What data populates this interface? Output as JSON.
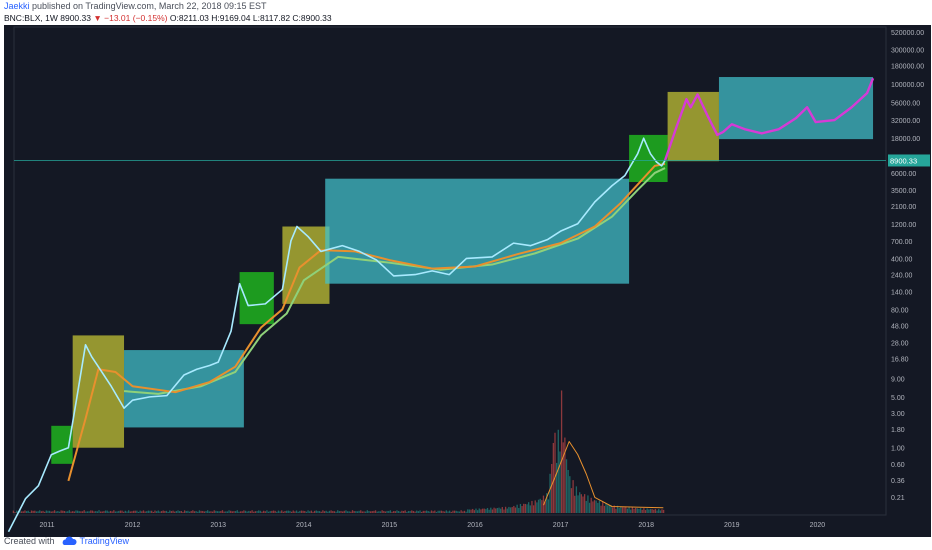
{
  "header": {
    "author": "Jaekki",
    "published": " published on TradingView.com, March 22, 2018 09:15 EST",
    "symbol": "BNC:BLX, 1W",
    "last": "8900.33",
    "change_arrow": "▼",
    "change": "−13.01 (−0.15%)",
    "ohlc": "O:8211.03  H:9169.04  L:8117.82  C:8900.33"
  },
  "footer": {
    "created_with": "Created with",
    "brand": "TradingView"
  },
  "colors": {
    "background": "#141824",
    "axis_text": "#b2b5be",
    "price_line": "#26a69a",
    "green_box": "#1fb31f",
    "yellow_box": "#c8c834",
    "cyan_box": "#43c3cd",
    "projection": "#d63ad6",
    "ma_orange": "#e8902e",
    "ma_green": "#8fd17a"
  },
  "chart_data": {
    "type": "line",
    "y_scale": "log",
    "x_ticks": [
      "2011",
      "2012",
      "2013",
      "2014",
      "2015",
      "2016",
      "2017",
      "2018",
      "2019",
      "2020"
    ],
    "y_ticks": [
      "520000.00",
      "300000.00",
      "180000.00",
      "100000.00",
      "56000.00",
      "32000.00",
      "18000.00",
      "6000.00",
      "3500.00",
      "2100.00",
      "1200.00",
      "700.00",
      "400.00",
      "240.00",
      "140.00",
      "80.00",
      "48.00",
      "28.00",
      "16.80",
      "9.00",
      "5.00",
      "3.00",
      "1.80",
      "1.00",
      "0.60",
      "0.36",
      "0.21"
    ],
    "last_price_label": "8900.33",
    "price": [
      [
        2010.55,
        0.07
      ],
      [
        2010.75,
        0.2
      ],
      [
        2010.9,
        0.3
      ],
      [
        2011.05,
        0.8
      ],
      [
        2011.15,
        0.9
      ],
      [
        2011.25,
        1.0
      ],
      [
        2011.35,
        5.0
      ],
      [
        2011.45,
        26
      ],
      [
        2011.52,
        18
      ],
      [
        2011.6,
        13
      ],
      [
        2011.75,
        7
      ],
      [
        2011.9,
        3.5
      ],
      [
        2012.0,
        4.5
      ],
      [
        2012.2,
        5.0
      ],
      [
        2012.4,
        5.2
      ],
      [
        2012.6,
        10
      ],
      [
        2012.75,
        12
      ],
      [
        2012.9,
        13.5
      ],
      [
        2013.0,
        15
      ],
      [
        2013.15,
        40
      ],
      [
        2013.25,
        180
      ],
      [
        2013.35,
        90
      ],
      [
        2013.55,
        95
      ],
      [
        2013.75,
        150
      ],
      [
        2013.85,
        700
      ],
      [
        2013.92,
        1100
      ],
      [
        2014.05,
        800
      ],
      [
        2014.2,
        500
      ],
      [
        2014.45,
        600
      ],
      [
        2014.65,
        500
      ],
      [
        2014.85,
        380
      ],
      [
        2015.05,
        230
      ],
      [
        2015.3,
        240
      ],
      [
        2015.5,
        270
      ],
      [
        2015.7,
        240
      ],
      [
        2015.9,
        400
      ],
      [
        2016.2,
        420
      ],
      [
        2016.45,
        650
      ],
      [
        2016.65,
        600
      ],
      [
        2016.85,
        730
      ],
      [
        2017.0,
        950
      ],
      [
        2017.2,
        1200
      ],
      [
        2017.4,
        2400
      ],
      [
        2017.6,
        4000
      ],
      [
        2017.75,
        5500
      ],
      [
        2017.9,
        11000
      ],
      [
        2017.97,
        18000
      ],
      [
        2018.05,
        11000
      ],
      [
        2018.12,
        8500
      ],
      [
        2018.18,
        7500
      ],
      [
        2018.22,
        8900.33
      ]
    ],
    "ma_orange": [
      [
        2011.25,
        0.35
      ],
      [
        2011.45,
        2.5
      ],
      [
        2011.6,
        12
      ],
      [
        2011.8,
        11
      ],
      [
        2012.0,
        7
      ],
      [
        2012.5,
        5.8
      ],
      [
        2012.9,
        8
      ],
      [
        2013.2,
        13
      ],
      [
        2013.5,
        45
      ],
      [
        2013.75,
        80
      ],
      [
        2013.95,
        300
      ],
      [
        2014.2,
        520
      ],
      [
        2014.6,
        500
      ],
      [
        2015.0,
        380
      ],
      [
        2015.5,
        290
      ],
      [
        2016.0,
        310
      ],
      [
        2016.5,
        460
      ],
      [
        2017.0,
        650
      ],
      [
        2017.4,
        1100
      ],
      [
        2017.7,
        2300
      ],
      [
        2017.95,
        4800
      ],
      [
        2018.1,
        7500
      ],
      [
        2018.22,
        8000
      ]
    ],
    "ma_green": [
      [
        2011.9,
        6
      ],
      [
        2012.3,
        5.5
      ],
      [
        2012.8,
        7
      ],
      [
        2013.2,
        11
      ],
      [
        2013.5,
        35
      ],
      [
        2013.8,
        70
      ],
      [
        2014.0,
        200
      ],
      [
        2014.4,
        420
      ],
      [
        2015.0,
        350
      ],
      [
        2015.6,
        280
      ],
      [
        2016.2,
        330
      ],
      [
        2016.7,
        470
      ],
      [
        2017.2,
        750
      ],
      [
        2017.6,
        1500
      ],
      [
        2017.9,
        3500
      ],
      [
        2018.1,
        6000
      ],
      [
        2018.22,
        7000
      ]
    ],
    "projection": [
      [
        2018.22,
        8900
      ],
      [
        2018.35,
        25000
      ],
      [
        2018.47,
        62000
      ],
      [
        2018.52,
        48000
      ],
      [
        2018.6,
        72000
      ],
      [
        2018.72,
        36000
      ],
      [
        2018.83,
        20000
      ],
      [
        2018.9,
        22000
      ],
      [
        2019.0,
        28000
      ],
      [
        2019.15,
        24000
      ],
      [
        2019.35,
        21000
      ],
      [
        2019.55,
        24000
      ],
      [
        2019.75,
        34000
      ],
      [
        2019.88,
        48000
      ],
      [
        2019.98,
        30000
      ],
      [
        2020.2,
        32000
      ],
      [
        2020.4,
        48000
      ],
      [
        2020.58,
        75000
      ],
      [
        2020.65,
        120000
      ]
    ],
    "volume": [
      [
        2015.9,
        0.03
      ],
      [
        2016.4,
        0.05
      ],
      [
        2016.7,
        0.1
      ],
      [
        2016.85,
        0.16
      ],
      [
        2016.92,
        0.72
      ],
      [
        2016.95,
        0.5
      ],
      [
        2017.0,
        0.98
      ],
      [
        2017.05,
        0.55
      ],
      [
        2017.1,
        0.3
      ],
      [
        2017.2,
        0.18
      ],
      [
        2017.35,
        0.12
      ],
      [
        2017.6,
        0.06
      ],
      [
        2017.9,
        0.04
      ],
      [
        2018.15,
        0.03
      ]
    ],
    "volume_ma": [
      [
        2016.8,
        0.06
      ],
      [
        2016.95,
        0.3
      ],
      [
        2017.1,
        0.55
      ],
      [
        2017.2,
        0.45
      ],
      [
        2017.3,
        0.3
      ],
      [
        2017.4,
        0.12
      ],
      [
        2017.6,
        0.05
      ],
      [
        2018.2,
        0.04
      ]
    ],
    "annotations": {
      "boxes": [
        {
          "color": "green",
          "x": [
            2011.05,
            2011.3
          ],
          "y": [
            0.6,
            2.0
          ]
        },
        {
          "color": "yellow",
          "x": [
            2011.3,
            2011.9
          ],
          "y": [
            1.0,
            35
          ]
        },
        {
          "color": "cyan",
          "x": [
            2011.9,
            2013.3
          ],
          "y": [
            1.9,
            22
          ]
        },
        {
          "color": "green",
          "x": [
            2013.25,
            2013.65
          ],
          "y": [
            50,
            260
          ]
        },
        {
          "color": "yellow",
          "x": [
            2013.75,
            2014.3
          ],
          "y": [
            95,
            1100
          ]
        },
        {
          "color": "cyan",
          "x": [
            2014.25,
            2017.8
          ],
          "y": [
            180,
            5000
          ]
        },
        {
          "color": "green",
          "x": [
            2017.8,
            2018.25
          ],
          "y": [
            4500,
            20000
          ]
        },
        {
          "color": "yellow",
          "x": [
            2018.25,
            2018.85
          ],
          "y": [
            8700,
            78000
          ]
        },
        {
          "color": "cyan",
          "x": [
            2018.85,
            2020.65
          ],
          "y": [
            17500,
            125000
          ]
        }
      ]
    }
  }
}
